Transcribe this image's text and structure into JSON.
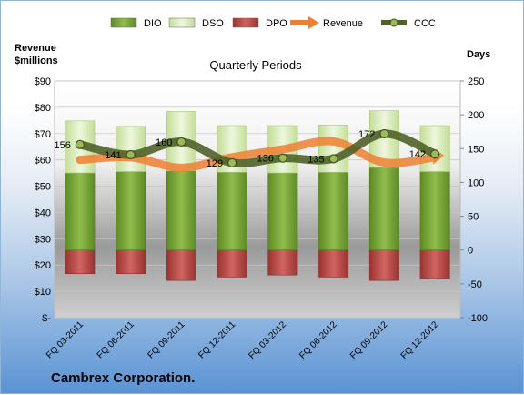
{
  "chart_data": {
    "type": "bar",
    "title": "Quarterly Periods",
    "company": "Cambrex Corporation.",
    "left_axis_title_line1": "Revenue",
    "left_axis_title_line2": "$millions",
    "right_axis_title": "Days",
    "categories": [
      "FQ 03-2011",
      "FQ 06-2011",
      "FQ 09-2011",
      "FQ 12-2011",
      "FQ 03-2012",
      "FQ 06-2012",
      "FQ 09-2012",
      "FQ 12-2012"
    ],
    "left_axis": {
      "min": 0,
      "max": 90,
      "step": 10,
      "tick_labels": [
        "$-",
        "$10",
        "$20",
        "$30",
        "$40",
        "$50",
        "$60",
        "$70",
        "$80",
        "$90"
      ]
    },
    "right_axis": {
      "min": -100,
      "max": 250,
      "step": 50,
      "tick_labels": [
        "-100",
        "-50",
        "0",
        "50",
        "100",
        "150",
        "200",
        "250"
      ]
    },
    "grid": true,
    "legend_position": "top",
    "series": [
      {
        "name": "DIO",
        "type": "stacked-bar",
        "axis": "right",
        "color": "#7aa33a",
        "values": [
          114,
          116,
          117,
          115,
          114,
          115,
          122,
          116
        ]
      },
      {
        "name": "DSO",
        "type": "stacked-bar",
        "axis": "right",
        "color": "#d4eab1",
        "values": [
          77,
          67,
          88,
          69,
          70,
          70,
          84,
          68
        ]
      },
      {
        "name": "DPO",
        "type": "negative-bar",
        "axis": "right",
        "color": "#c0504d",
        "values": [
          -35,
          -35,
          -45,
          -40,
          -37,
          -40,
          -45,
          -42
        ]
      },
      {
        "name": "Revenue",
        "type": "line",
        "axis": "left",
        "color": "#ee7f31",
        "values": [
          60,
          61,
          57,
          61,
          64,
          67,
          59,
          61
        ]
      },
      {
        "name": "CCC",
        "type": "line-markers",
        "axis": "right",
        "color": "#4f6228",
        "values": [
          156,
          141,
          160,
          129,
          136,
          135,
          172,
          142
        ],
        "labels": [
          "156",
          "141",
          "160",
          "129",
          "136",
          "135",
          "172",
          "142"
        ]
      }
    ]
  }
}
